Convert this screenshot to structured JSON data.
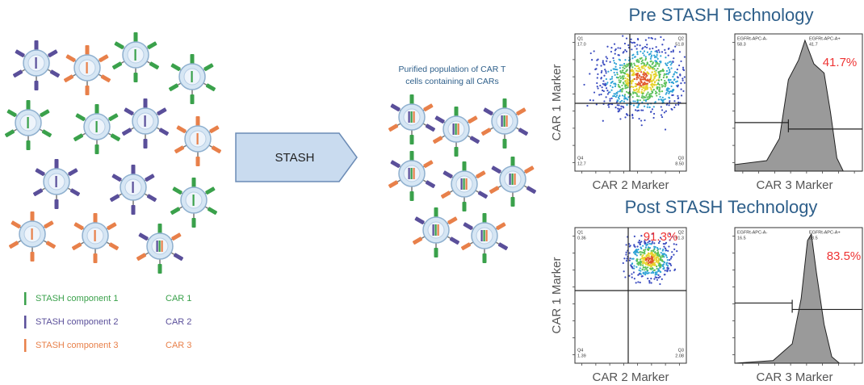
{
  "legend": [
    {
      "component": "STASH component 1",
      "car": "CAR 1"
    },
    {
      "component": "STASH component 2",
      "car": "CAR 2"
    },
    {
      "component": "STASH component 3",
      "car": "CAR 3"
    }
  ],
  "arrow_label": "STASH",
  "purified_caption": [
    "Purified population of CAR T",
    "cells containing all CARs"
  ],
  "panels": [
    {
      "title": "Pre STASH Technology",
      "scatter": {
        "y_label": "CAR 1 Marker",
        "x_label": "CAR 2 Marker",
        "quadrants": [
          {
            "name": "Q1",
            "value": "17.0"
          },
          {
            "name": "Q2",
            "value": "51.8"
          },
          {
            "name": "Q4",
            "value": "12.7"
          },
          {
            "name": "Q3",
            "value": "8.50"
          }
        ]
      },
      "histogram": {
        "x_label": "CAR 3 Marker",
        "percent_label": "41.7%",
        "gates": [
          {
            "name": "EGFRt-APC-A-",
            "value": "58.3"
          },
          {
            "name": "EGFRt-APC-A+",
            "value": "41.7"
          }
        ]
      }
    },
    {
      "title": "Post STASH Technology",
      "scatter": {
        "y_label": "CAR 1 Marker",
        "x_label": "CAR 2 Marker",
        "percent_label": "91.3%",
        "quadrants": [
          {
            "name": "Q1",
            "value": "0.36"
          },
          {
            "name": "Q2",
            "value": "91.3"
          },
          {
            "name": "Q4",
            "value": "1.39"
          },
          {
            "name": "Q3",
            "value": "2.08"
          }
        ]
      },
      "histogram": {
        "x_label": "CAR 3 Marker",
        "percent_label": "83.5%",
        "gates": [
          {
            "name": "EGFRt-APC-A-",
            "value": "16.5"
          },
          {
            "name": "EGFRt-APC-A+",
            "value": "83.5"
          }
        ]
      }
    }
  ]
}
